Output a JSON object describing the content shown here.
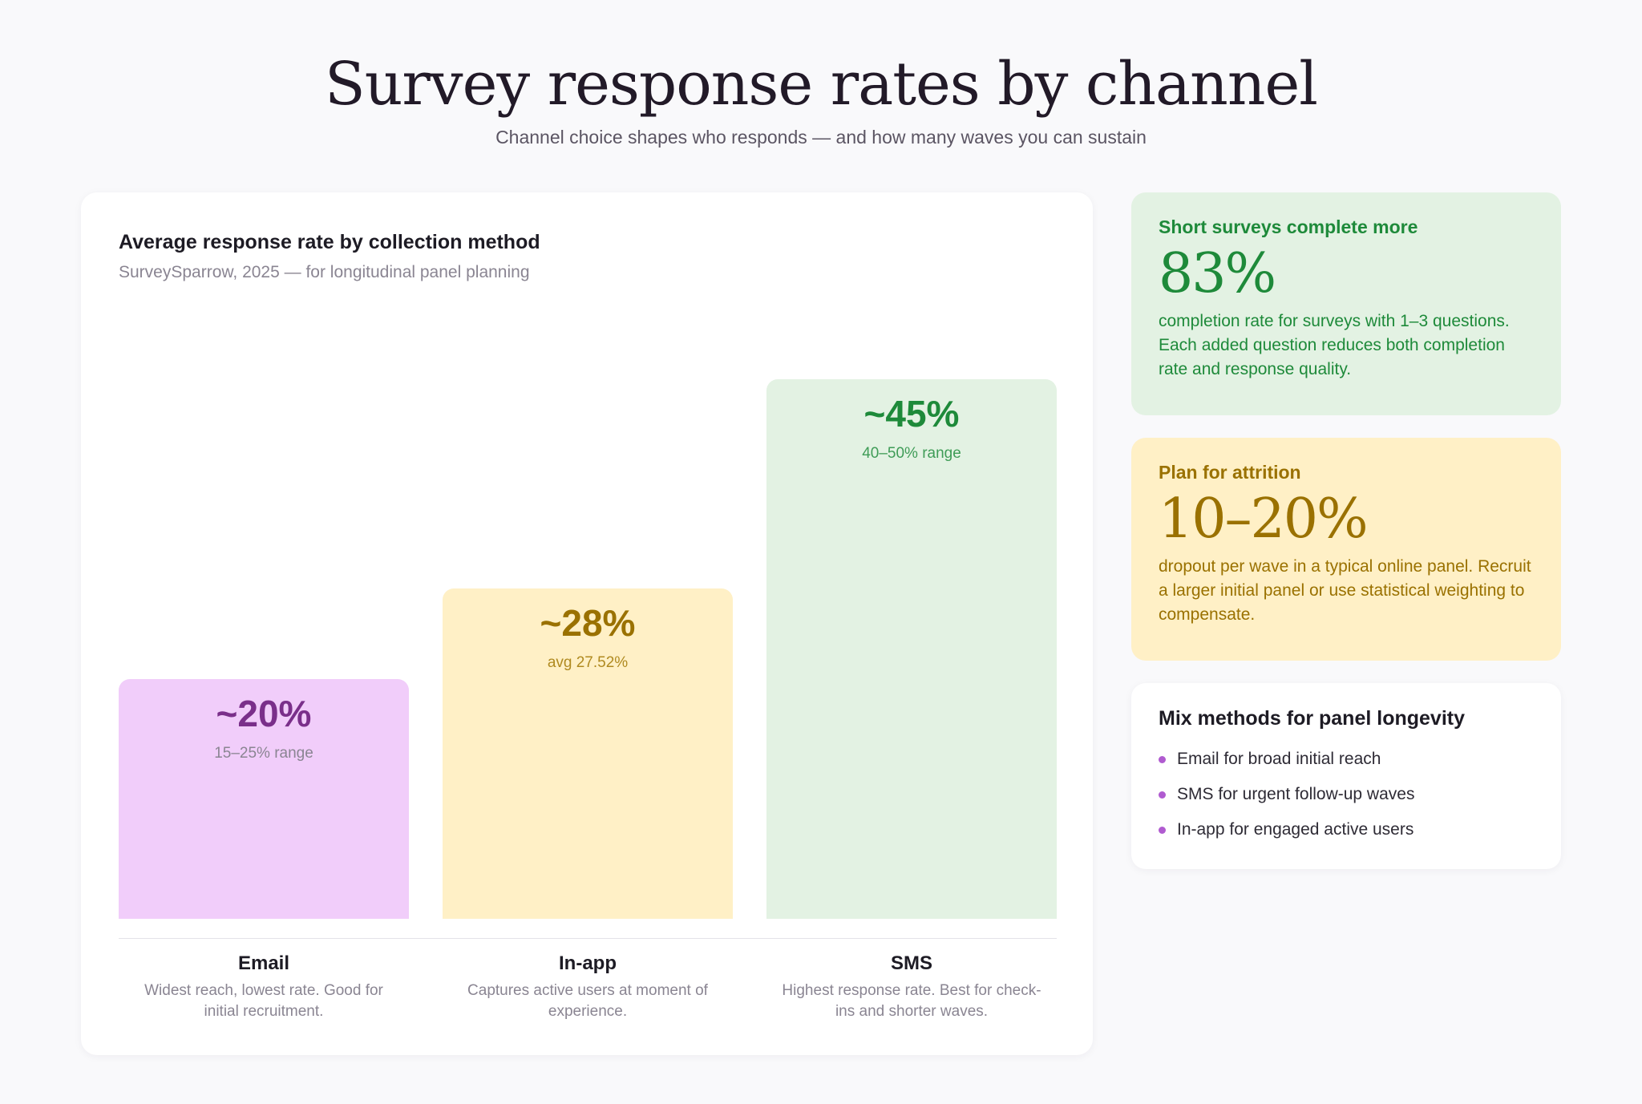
{
  "title": "Survey response rates by channel",
  "subtitle": "Channel choice shapes who responds — and how many waves you can sustain",
  "chart_data": {
    "type": "bar",
    "title": "Average response rate by collection method",
    "subtitle": "SurveySparrow, 2025 — for longitudinal panel planning",
    "ylim": [
      0,
      50
    ],
    "grid": false,
    "categories": [
      "Email",
      "In-app",
      "SMS"
    ],
    "values": [
      20,
      27.52,
      45
    ],
    "value_labels": [
      "~20%",
      "~28%",
      "~45%"
    ],
    "sub_labels": [
      "15–25% range",
      "avg 27.52%",
      "40–50% range"
    ],
    "descriptions": [
      "Widest reach, lowest rate. Good for initial recruitment.",
      "Captures active users at moment of experience.",
      "Highest response rate. Best for check-ins and shorter waves."
    ],
    "colors": {
      "fill": [
        "#f1cdfa",
        "#fff0c6",
        "#e3f2e3"
      ],
      "value": [
        "#7a2f8a",
        "#9a7100",
        "#1e8a3a"
      ],
      "sub": [
        "#8a8592",
        "#b08a20",
        "#3f9c57"
      ]
    }
  },
  "sidebar": {
    "short_surveys": {
      "heading": "Short surveys complete more",
      "stat": "83%",
      "text": "completion rate for surveys with 1–3 questions. Each added question reduces both completion rate and response quality."
    },
    "attrition": {
      "heading": "Plan for attrition",
      "stat": "10–20%",
      "text": "dropout per wave in a typical online panel. Recruit a larger initial panel or use statistical weighting to compensate."
    },
    "mix": {
      "heading": "Mix methods for panel longevity",
      "items": [
        "Email for broad initial reach",
        "SMS for urgent follow-up waves",
        "In-app for engaged active users"
      ]
    }
  }
}
